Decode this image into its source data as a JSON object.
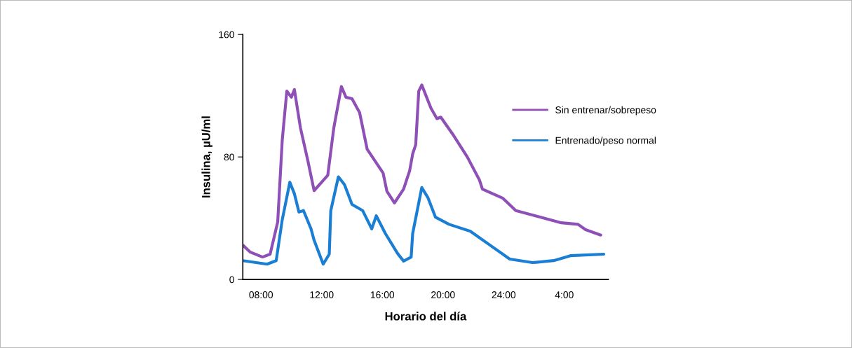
{
  "chart_data": {
    "type": "line",
    "xlabel": "Horario del día",
    "ylabel": "Insulina, µU/ml",
    "xlim": [
      "2000-01-01T06:48",
      "2000-01-02T06:54"
    ],
    "xticks": [
      {
        "value": "2000-01-01T08:00",
        "label": "08:00"
      },
      {
        "value": "2000-01-01T12:00",
        "label": "12:00"
      },
      {
        "value": "2000-01-01T16:00",
        "label": "16:00"
      },
      {
        "value": "2000-01-01T20:00",
        "label": "20:00"
      },
      {
        "value": "2000-01-02T00:00",
        "label": "24:00"
      },
      {
        "value": "2000-01-02T04:00",
        "label": "4:00"
      }
    ],
    "ylim": [
      0,
      160
    ],
    "yticks": [
      0,
      80,
      160
    ],
    "grid": false,
    "legend": "right",
    "marker": "none",
    "line_style": "solid",
    "series": [
      {
        "name": "Sin entrenar/sobrepeso",
        "color": "#8e4fb6",
        "x": [
          "2000-01-01T06:48",
          "2000-01-01T07:18",
          "2000-01-01T08:06",
          "2000-01-01T08:36",
          "2000-01-01T09:06",
          "2000-01-01T09:24",
          "2000-01-01T09:42",
          "2000-01-01T10:00",
          "2000-01-01T10:12",
          "2000-01-01T10:36",
          "2000-01-01T11:06",
          "2000-01-01T11:30",
          "2000-01-01T12:24",
          "2000-01-01T12:48",
          "2000-01-01T13:18",
          "2000-01-01T13:36",
          "2000-01-01T14:00",
          "2000-01-01T14:30",
          "2000-01-01T15:00",
          "2000-01-01T16:03",
          "2000-01-01T16:18",
          "2000-01-01T16:48",
          "2000-01-01T17:24",
          "2000-01-01T17:48",
          "2000-01-01T18:00",
          "2000-01-01T18:12",
          "2000-01-01T18:24",
          "2000-01-01T18:36",
          "2000-01-01T19:12",
          "2000-01-01T19:36",
          "2000-01-01T19:51",
          "2000-01-01T20:42",
          "2000-01-01T21:36",
          "2000-01-01T22:24",
          "2000-01-01T22:36",
          "2000-01-01T23:57",
          "2000-01-02T00:48",
          "2000-01-02T02:24",
          "2000-01-02T03:48",
          "2000-01-02T04:54",
          "2000-01-02T05:24",
          "2000-01-02T06:24"
        ],
        "values": [
          22.4,
          17.8,
          14.6,
          16.5,
          37.5,
          91,
          123,
          119,
          124,
          99,
          77,
          58,
          68,
          99,
          126,
          119,
          118,
          109,
          85,
          69.5,
          57.6,
          50,
          59,
          71,
          82,
          88,
          123,
          127,
          112,
          105,
          106,
          94,
          80,
          65,
          59,
          53,
          45,
          40.7,
          37,
          36,
          32.5,
          29
        ]
      },
      {
        "name": "Entrenado/peso normal",
        "color": "#1a7fd4",
        "x": [
          "2000-01-01T06:48",
          "2000-01-01T08:24",
          "2000-01-01T09:00",
          "2000-01-01T09:24",
          "2000-01-01T09:54",
          "2000-01-01T10:12",
          "2000-01-01T10:30",
          "2000-01-01T10:48",
          "2000-01-01T11:18",
          "2000-01-01T11:30",
          "2000-01-01T12:06",
          "2000-01-01T12:30",
          "2000-01-01T12:36",
          "2000-01-01T13:06",
          "2000-01-01T13:30",
          "2000-01-01T14:00",
          "2000-01-01T14:42",
          "2000-01-01T15:18",
          "2000-01-01T15:36",
          "2000-01-01T16:12",
          "2000-01-01T17:00",
          "2000-01-01T17:24",
          "2000-01-01T17:54",
          "2000-01-01T18:00",
          "2000-01-01T18:36",
          "2000-01-01T19:00",
          "2000-01-01T19:30",
          "2000-01-01T20:24",
          "2000-01-01T21:48",
          "2000-01-01T23:06",
          "2000-01-02T00:24",
          "2000-01-02T01:54",
          "2000-01-02T03:18",
          "2000-01-02T04:24",
          "2000-01-02T06:36"
        ],
        "values": [
          12.3,
          10,
          12.3,
          39,
          63.5,
          56,
          44,
          45,
          33,
          25.6,
          10,
          16.5,
          45,
          67,
          62,
          49,
          45,
          33,
          41.6,
          30,
          17,
          12,
          14.6,
          30,
          60,
          53.5,
          40.7,
          36,
          31.5,
          22.4,
          13.3,
          11,
          12.3,
          15.5,
          16.5
        ]
      }
    ]
  }
}
